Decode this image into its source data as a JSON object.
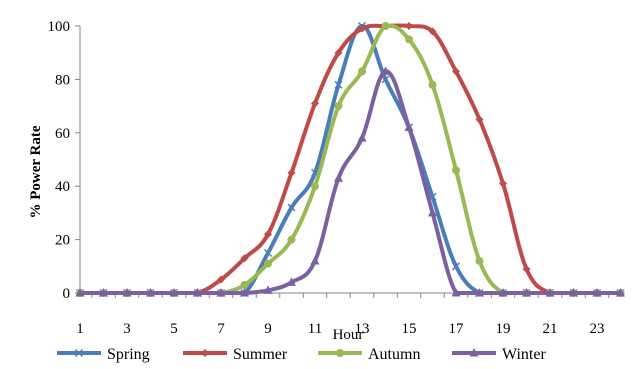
{
  "chart_data": {
    "type": "line",
    "xlabel": "Hour",
    "ylabel": "% Power Rate",
    "ylim": [
      0,
      100
    ],
    "xlim": [
      1,
      24
    ],
    "x": [
      1,
      2,
      3,
      4,
      5,
      6,
      7,
      8,
      9,
      10,
      11,
      12,
      13,
      14,
      15,
      16,
      17,
      18,
      19,
      20,
      21,
      22,
      23,
      24
    ],
    "x_tick_labels": [
      "1",
      "3",
      "5",
      "7",
      "9",
      "11",
      "13",
      "15",
      "17",
      "19",
      "21",
      "23"
    ],
    "y_tick_labels": [
      "0",
      "20",
      "40",
      "60",
      "80",
      "100"
    ],
    "y_ticks": [
      0,
      20,
      40,
      60,
      80,
      100
    ],
    "grid": false,
    "legend_position": "bottom",
    "series": [
      {
        "name": "Spring",
        "color": "#4a7ebb",
        "marker": "x",
        "values": [
          0,
          0,
          0,
          0,
          0,
          0,
          0,
          0,
          15,
          32,
          45,
          78,
          100,
          80,
          62,
          36,
          10,
          0,
          0,
          0,
          0,
          0,
          0,
          0
        ]
      },
      {
        "name": "Summer",
        "color": "#be4b48",
        "marker": "diamond",
        "values": [
          0,
          0,
          0,
          0,
          0,
          0,
          5,
          13,
          22,
          45,
          71,
          90,
          99,
          100,
          100,
          98,
          83,
          65,
          41,
          9,
          0,
          0,
          0,
          0
        ]
      },
      {
        "name": "Autumn",
        "color": "#98b954",
        "marker": "circle",
        "values": [
          0,
          0,
          0,
          0,
          0,
          0,
          0,
          3,
          11,
          20,
          40,
          70,
          83,
          100,
          95,
          78,
          46,
          12,
          0,
          0,
          0,
          0,
          0,
          0
        ]
      },
      {
        "name": "Winter",
        "color": "#7d60a0",
        "marker": "triangle",
        "values": [
          0,
          0,
          0,
          0,
          0,
          0,
          0,
          0,
          1,
          4,
          12,
          43,
          58,
          83,
          62,
          30,
          0,
          0,
          0,
          0,
          0,
          0,
          0,
          0
        ]
      }
    ]
  }
}
